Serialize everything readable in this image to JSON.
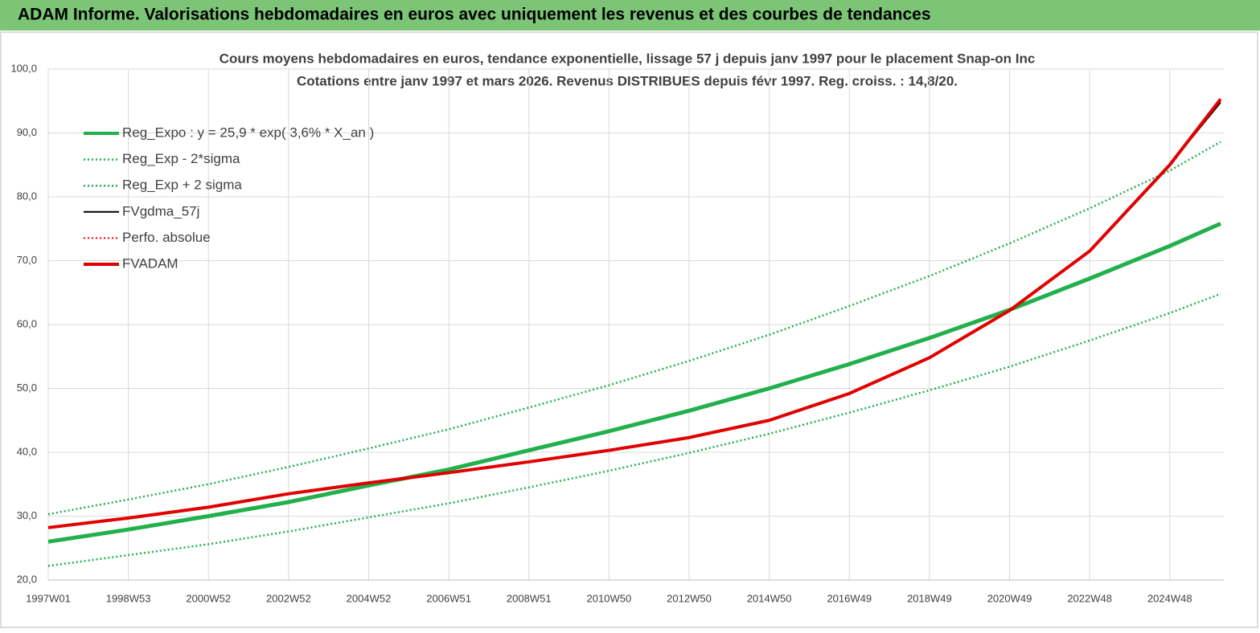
{
  "header": "ADAM Informe. Valorisations hebdomadaires en euros avec uniquement les revenus et des courbes de tendances",
  "chart_data": {
    "type": "line",
    "title": "Cours moyens hebdomadaires en euros, tendance exponentielle, lissage 57 j depuis janv 1997 pour le placement Snap-on Inc",
    "subtitle": "Cotations entre janv 1997 et mars 2026. Revenus DISTRIBUES depuis févr 1997. Reg. croiss. : 14,8/20.",
    "x": [
      0,
      104,
      208,
      312,
      416,
      520,
      624,
      728,
      832,
      936,
      1040,
      1144,
      1248,
      1352,
      1456,
      1522
    ],
    "xlim": [
      0,
      1522
    ],
    "xticks": [
      {
        "value": 0,
        "label": "1997W01"
      },
      {
        "value": 104,
        "label": "1998W53"
      },
      {
        "value": 208,
        "label": "2000W52"
      },
      {
        "value": 312,
        "label": "2002W52"
      },
      {
        "value": 416,
        "label": "2004W52"
      },
      {
        "value": 520,
        "label": "2006W51"
      },
      {
        "value": 624,
        "label": "2008W51"
      },
      {
        "value": 728,
        "label": "2010W50"
      },
      {
        "value": 832,
        "label": "2012W50"
      },
      {
        "value": 936,
        "label": "2014W50"
      },
      {
        "value": 1040,
        "label": "2016W49"
      },
      {
        "value": 1144,
        "label": "2018W49"
      },
      {
        "value": 1248,
        "label": "2020W49"
      },
      {
        "value": 1352,
        "label": "2022W48"
      },
      {
        "value": 1456,
        "label": "2024W48"
      }
    ],
    "ylim": [
      20,
      100
    ],
    "yticks": [
      {
        "value": 20,
        "label": "20,0"
      },
      {
        "value": 30,
        "label": "30,0"
      },
      {
        "value": 40,
        "label": "40,0"
      },
      {
        "value": 50,
        "label": "50,0"
      },
      {
        "value": 60,
        "label": "60,0"
      },
      {
        "value": 70,
        "label": "70,0"
      },
      {
        "value": 80,
        "label": "80,0"
      },
      {
        "value": 90,
        "label": "90,0"
      },
      {
        "value": 100,
        "label": "100,0"
      }
    ],
    "grid": true,
    "series": [
      {
        "name": "Reg_Expo : y = 25,9 * exp( 3,6% *  X_an )",
        "color": "#22b04c",
        "style": "solid",
        "width": 5,
        "values": [
          26.0,
          27.9,
          30.0,
          32.2,
          34.8,
          37.3,
          40.3,
          43.3,
          46.5,
          50.0,
          53.8,
          57.9,
          62.3,
          67.2,
          72.3,
          75.8
        ]
      },
      {
        "name": "Reg_Exp - 2*sigma",
        "color": "#22b04c",
        "style": "dotted",
        "width": 2.5,
        "values": [
          22.2,
          23.9,
          25.6,
          27.6,
          29.8,
          32.0,
          34.5,
          37.1,
          39.9,
          42.9,
          46.2,
          49.7,
          53.4,
          57.5,
          61.8,
          64.8
        ]
      },
      {
        "name": "Reg_Exp + 2 sigma",
        "color": "#22b04c",
        "style": "dotted",
        "width": 2.5,
        "values": [
          30.3,
          32.6,
          35.0,
          37.7,
          40.6,
          43.6,
          47.0,
          50.5,
          54.3,
          58.4,
          62.9,
          67.6,
          72.7,
          78.2,
          84.1,
          88.6
        ]
      },
      {
        "name": "FVgdma_57j",
        "color": "#000000",
        "style": "solid",
        "width": 2,
        "values": [
          28.2,
          29.7,
          31.4,
          33.5,
          35.2,
          36.8,
          38.5,
          40.3,
          42.3,
          45.0,
          49.2,
          54.8,
          62.2,
          71.5,
          85.0,
          94.8
        ]
      },
      {
        "name": "Perfo. absolue",
        "color": "#e00000",
        "style": "dotted",
        "width": 2,
        "values": [
          28.2,
          29.7,
          31.4,
          33.5,
          35.2,
          36.8,
          38.5,
          40.3,
          42.3,
          45.0,
          49.2,
          54.8,
          62.2,
          71.5,
          85.0,
          95.3
        ]
      },
      {
        "name": "FVADAM",
        "color": "#e00000",
        "style": "solid",
        "width": 4,
        "values": [
          28.2,
          29.7,
          31.4,
          33.5,
          35.2,
          36.8,
          38.5,
          40.3,
          42.3,
          45.0,
          49.2,
          54.8,
          62.2,
          71.5,
          85.0,
          95.3
        ]
      }
    ]
  }
}
